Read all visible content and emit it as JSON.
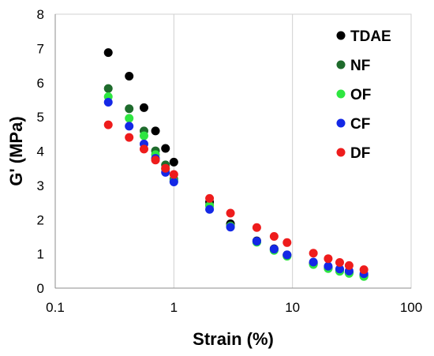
{
  "chart_data": {
    "type": "scatter",
    "x_scale": "log",
    "xlim": [
      0.1,
      100
    ],
    "ylim": [
      0,
      8
    ],
    "xlabel": "Strain (%)",
    "ylabel": "G' (MPa)",
    "x_ticks": [
      0.1,
      1,
      10,
      100
    ],
    "x_tick_labels": [
      "0.1",
      "1",
      "10",
      "100"
    ],
    "y_ticks": [
      0,
      1,
      2,
      3,
      4,
      5,
      6,
      7,
      8
    ],
    "y_tick_labels": [
      "0",
      "1",
      "2",
      "3",
      "4",
      "5",
      "6",
      "7",
      "8"
    ],
    "grid": "vertical",
    "legend_position": "top-right",
    "series": [
      {
        "name": "TDAE",
        "color": "#000000",
        "points": [
          [
            0.28,
            6.88
          ],
          [
            0.42,
            6.19
          ],
          [
            0.56,
            5.27
          ],
          [
            0.7,
            4.59
          ],
          [
            0.85,
            4.08
          ],
          [
            1.0,
            3.68
          ],
          [
            2.0,
            2.52
          ],
          [
            3.0,
            1.88
          ],
          [
            5.0,
            1.38
          ],
          [
            7.0,
            1.15
          ],
          [
            9.0,
            0.97
          ],
          [
            15.0,
            0.73
          ],
          [
            20.0,
            0.6
          ],
          [
            25.0,
            0.52
          ],
          [
            30.0,
            0.46
          ],
          [
            40.0,
            0.38
          ]
        ]
      },
      {
        "name": "NF",
        "color": "#1e6b2c",
        "points": [
          [
            0.28,
            5.83
          ],
          [
            0.42,
            5.24
          ],
          [
            0.56,
            4.59
          ],
          [
            0.7,
            4.01
          ],
          [
            0.85,
            3.6
          ],
          [
            1.0,
            3.18
          ],
          [
            2.0,
            2.42
          ],
          [
            3.0,
            1.82
          ],
          [
            5.0,
            1.35
          ],
          [
            7.0,
            1.12
          ],
          [
            9.0,
            0.94
          ],
          [
            15.0,
            0.7
          ],
          [
            20.0,
            0.58
          ],
          [
            25.0,
            0.5
          ],
          [
            30.0,
            0.44
          ],
          [
            40.0,
            0.35
          ]
        ]
      },
      {
        "name": "OF",
        "color": "#2ee640",
        "points": [
          [
            0.28,
            5.59
          ],
          [
            0.42,
            4.96
          ],
          [
            0.56,
            4.45
          ],
          [
            0.7,
            3.9
          ],
          [
            0.85,
            3.48
          ],
          [
            1.0,
            3.13
          ],
          [
            2.0,
            2.4
          ],
          [
            3.0,
            1.8
          ],
          [
            5.0,
            1.34
          ],
          [
            7.0,
            1.1
          ],
          [
            9.0,
            0.93
          ],
          [
            15.0,
            0.69
          ],
          [
            20.0,
            0.57
          ],
          [
            25.0,
            0.49
          ],
          [
            30.0,
            0.43
          ],
          [
            40.0,
            0.34
          ]
        ]
      },
      {
        "name": "CF",
        "color": "#1428e6",
        "points": [
          [
            0.28,
            5.43
          ],
          [
            0.42,
            4.73
          ],
          [
            0.56,
            4.21
          ],
          [
            0.7,
            3.79
          ],
          [
            0.85,
            3.38
          ],
          [
            1.0,
            3.1
          ],
          [
            2.0,
            2.3
          ],
          [
            3.0,
            1.78
          ],
          [
            5.0,
            1.37
          ],
          [
            7.0,
            1.14
          ],
          [
            9.0,
            0.97
          ],
          [
            15.0,
            0.76
          ],
          [
            20.0,
            0.64
          ],
          [
            25.0,
            0.56
          ],
          [
            30.0,
            0.5
          ],
          [
            40.0,
            0.42
          ]
        ]
      },
      {
        "name": "DF",
        "color": "#ee1c1c",
        "points": [
          [
            0.28,
            4.77
          ],
          [
            0.42,
            4.4
          ],
          [
            0.56,
            4.06
          ],
          [
            0.7,
            3.74
          ],
          [
            0.85,
            3.5
          ],
          [
            1.0,
            3.32
          ],
          [
            2.0,
            2.62
          ],
          [
            3.0,
            2.19
          ],
          [
            5.0,
            1.77
          ],
          [
            7.0,
            1.51
          ],
          [
            9.0,
            1.33
          ],
          [
            15.0,
            1.02
          ],
          [
            20.0,
            0.86
          ],
          [
            25.0,
            0.75
          ],
          [
            30.0,
            0.66
          ],
          [
            40.0,
            0.54
          ]
        ]
      }
    ]
  }
}
